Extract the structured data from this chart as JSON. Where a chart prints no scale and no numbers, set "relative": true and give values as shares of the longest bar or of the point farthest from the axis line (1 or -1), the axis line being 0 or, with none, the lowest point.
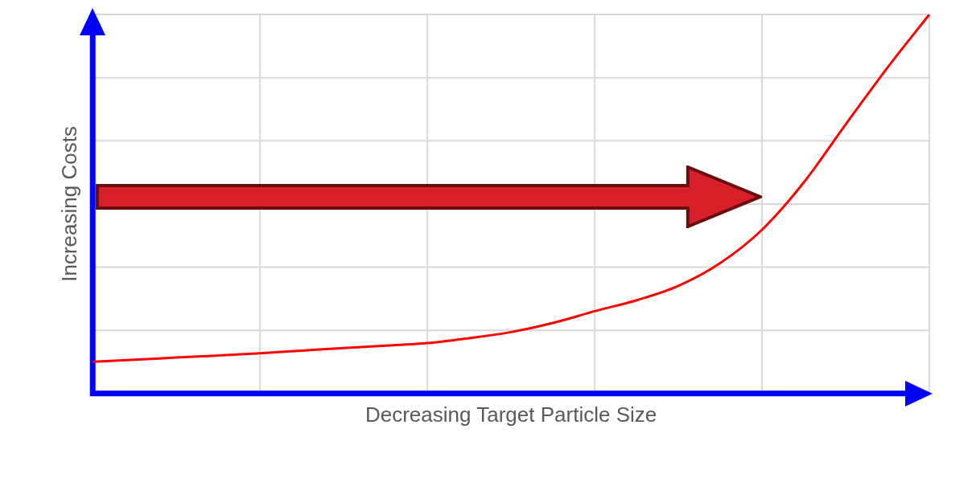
{
  "chart_data": {
    "type": "line",
    "relative": true,
    "xlabel": "Decreasing Target Particle Size",
    "ylabel": "Increasing Costs",
    "grid": true,
    "marker": "none",
    "line_style": "solid",
    "categories": [
      null,
      null,
      null,
      null,
      null,
      null,
      null,
      null,
      null,
      null,
      null,
      null,
      null,
      null,
      null,
      null,
      null,
      null,
      null,
      null,
      null
    ],
    "series": [
      {
        "color": "#ff0000",
        "values": [
          0.084,
          0.089,
          0.095,
          0.1,
          0.106,
          0.113,
          0.12,
          0.126,
          0.133,
          0.146,
          0.162,
          0.186,
          0.217,
          0.246,
          0.284,
          0.344,
          0.432,
          0.557,
          0.71,
          0.86,
          1
        ]
      }
    ]
  }
}
